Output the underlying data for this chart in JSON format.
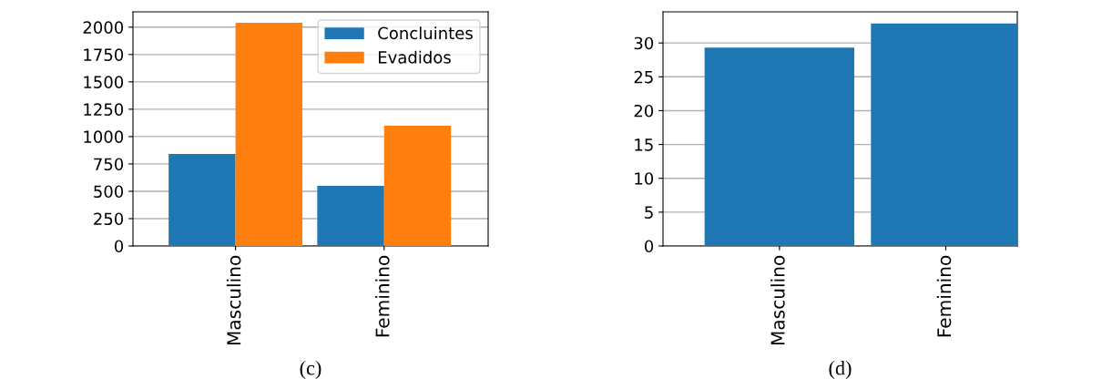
{
  "chart_data": [
    {
      "type": "bar",
      "categories": [
        "Masculino",
        "Feminino"
      ],
      "series": [
        {
          "name": "Concluintes",
          "color": "#1f77b4",
          "values": [
            840,
            550
          ]
        },
        {
          "name": "Evadidos",
          "color": "#ff7f0e",
          "values": [
            2040,
            1100
          ]
        }
      ],
      "ylim": [
        0,
        2140
      ],
      "yticks": [
        0,
        250,
        500,
        750,
        1000,
        1250,
        1500,
        1750,
        2000
      ],
      "grid": "y",
      "legend": "top right",
      "annotations": [
        "(c)"
      ]
    },
    {
      "type": "bar",
      "categories": [
        "Masculino",
        "Feminino"
      ],
      "series": [
        {
          "color": "#1f77b4",
          "values": [
            29.3,
            32.9
          ]
        }
      ],
      "ylim": [
        0,
        34.6
      ],
      "yticks": [
        0,
        5,
        10,
        15,
        20,
        25,
        30
      ],
      "grid": "y",
      "annotations": [
        "(d)"
      ]
    }
  ]
}
